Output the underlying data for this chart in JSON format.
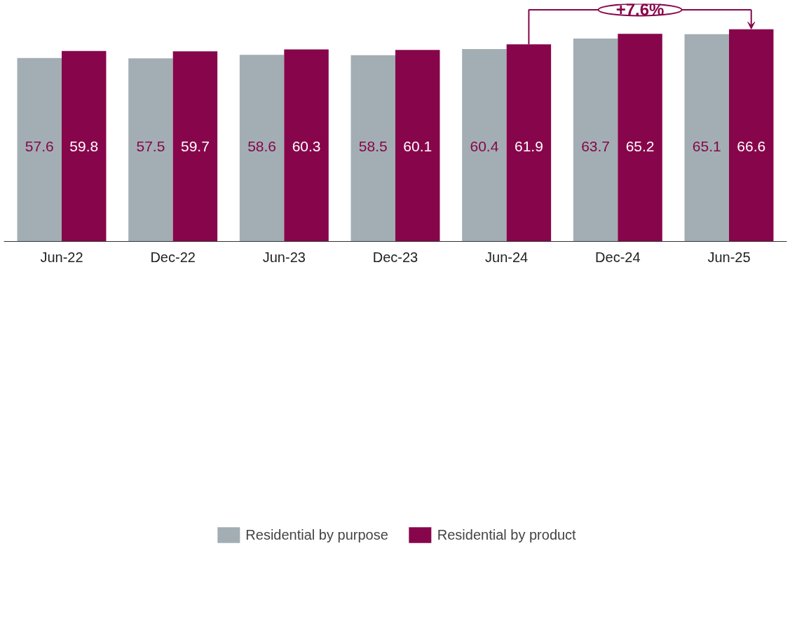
{
  "chart_data": {
    "type": "bar",
    "categories": [
      "Jun-22",
      "Dec-22",
      "Jun-23",
      "Dec-23",
      "Jun-24",
      "Dec-24",
      "Jun-25"
    ],
    "series": [
      {
        "name": "Residential by purpose",
        "color": "#a2aeb3",
        "values": [
          57.6,
          57.5,
          58.6,
          58.5,
          60.4,
          63.7,
          65.1
        ]
      },
      {
        "name": "Residential by product",
        "color": "#87064b",
        "values": [
          59.8,
          59.7,
          60.3,
          60.1,
          61.9,
          65.2,
          66.6
        ]
      }
    ],
    "data_labels": true,
    "legend": "bottom",
    "grid": false,
    "annotations": [
      "+7.6%"
    ]
  }
}
